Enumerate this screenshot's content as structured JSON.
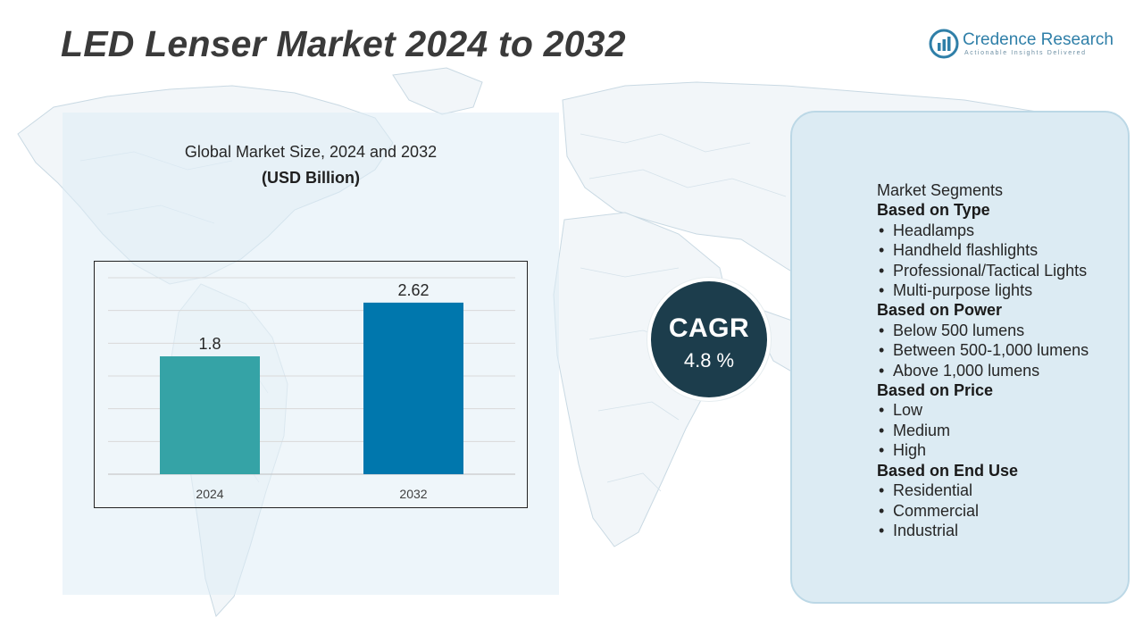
{
  "header": {
    "title": "LED Lenser Market 2024 to 2032"
  },
  "logo": {
    "name": "Credence Research",
    "tagline": "Actionable Insights Delivered",
    "icon": "credence-logo-icon"
  },
  "chart_panel": {
    "title": "Global Market Size,  2024 and 2032",
    "unit": "(USD Billion)"
  },
  "chart_data": {
    "type": "bar",
    "categories": [
      "2024",
      "2032"
    ],
    "values": [
      1.8,
      2.62
    ],
    "value_labels": [
      "1.8",
      "2.62"
    ],
    "title": "Global Market Size,  2024 and 2032",
    "ylabel": "(USD Billion)",
    "xlabel": "",
    "ylim": [
      0,
      3
    ],
    "grid": true,
    "colors": [
      "#35a3a6",
      "#0077ad"
    ]
  },
  "cagr": {
    "label": "CAGR",
    "value": "4.8 %"
  },
  "segments": {
    "heading": "Market Segments",
    "groups": [
      {
        "title": "Based on Type",
        "items": [
          "Headlamps",
          "Handheld flashlights",
          "Professional/Tactical Lights",
          "Multi-purpose lights"
        ]
      },
      {
        "title": "Based on Power",
        "items": [
          "Below 500 lumens",
          "Between 500-1,000 lumens",
          "Above 1,000 lumens"
        ]
      },
      {
        "title": "Based on Price",
        "items": [
          "Low",
          "Medium",
          "High"
        ]
      },
      {
        "title": "Based on End Use",
        "items": [
          "Residential",
          "Commercial",
          "Industrial"
        ]
      }
    ]
  },
  "colors": {
    "title_text": "#3a3a3a",
    "cagr_circle": "#1c3d4c",
    "panel_fill": "#dcebf3",
    "brand": "#2f7fa8"
  }
}
